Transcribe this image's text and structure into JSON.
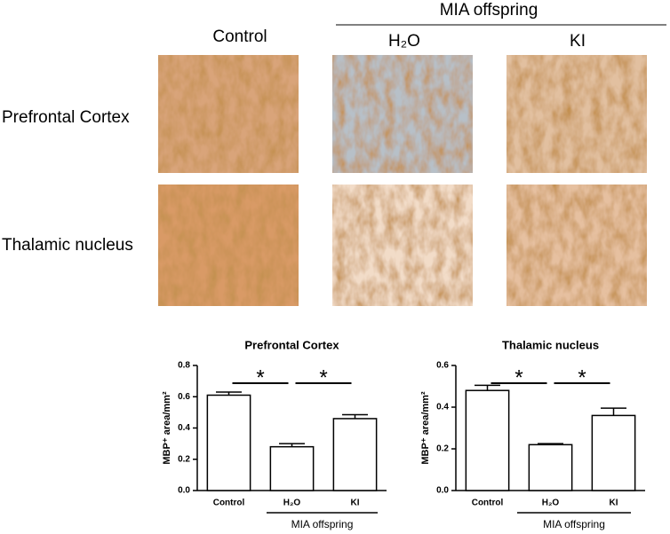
{
  "figure": {
    "column_headers": [
      "Control",
      "H₂O",
      "KI"
    ],
    "group_header": "MIA offspring",
    "row_labels": [
      "Prefrontal Cortex",
      "Thalamic nucleus"
    ]
  },
  "chart_data": [
    {
      "type": "bar",
      "title": "Prefrontal Cortex",
      "y_label": "MBP⁺ area/mm²",
      "categories": [
        "Control",
        "H₂O",
        "KI"
      ],
      "values": [
        0.61,
        0.28,
        0.46
      ],
      "errors": [
        0.02,
        0.02,
        0.025
      ],
      "color": "#ffffff",
      "ylim": [
        0,
        0.8
      ],
      "yticks": [
        {
          "value": 0,
          "label": "0.0"
        },
        0.2,
        0.4,
        0.6,
        0.8
      ],
      "group_label": "MIA offspring",
      "significance": [
        {
          "label": "*",
          "between": [
            "Control",
            "H₂O"
          ]
        },
        {
          "label": "*",
          "between": [
            "H₂O",
            "KI"
          ]
        }
      ]
    },
    {
      "type": "bar",
      "title": "Thalamic nucleus",
      "y_label": "MBP⁺ area/mm²",
      "categories": [
        "Control",
        "H₂O",
        "KI"
      ],
      "values": [
        0.48,
        0.22,
        0.36
      ],
      "errors": [
        0.025,
        0.005,
        0.035
      ],
      "color": "#ffffff",
      "ylim": [
        0,
        0.6
      ],
      "yticks": [
        {
          "value": 0,
          "label": "0.0"
        },
        0.2,
        0.4,
        0.6
      ],
      "group_label": "MIA offspring",
      "significance": [
        {
          "label": "*",
          "between": [
            "Control",
            "H₂O"
          ]
        },
        {
          "label": "*",
          "between": [
            "H₂O",
            "KI"
          ]
        }
      ]
    }
  ]
}
